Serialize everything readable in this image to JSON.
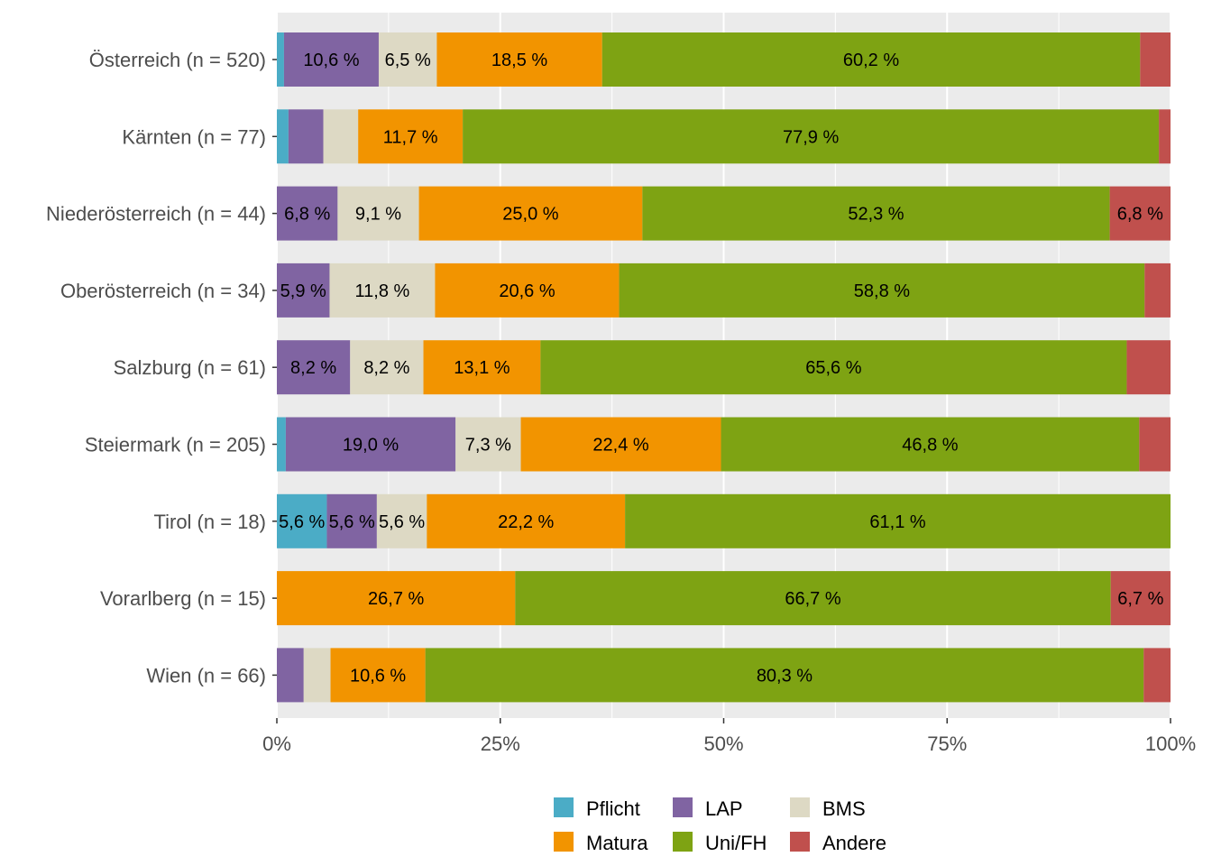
{
  "chart_data": {
    "type": "bar",
    "orientation": "horizontal",
    "stacked": true,
    "normalized": true,
    "title": "",
    "xlabel": "",
    "ylabel": "",
    "xlim": [
      0,
      100
    ],
    "x_ticks": [
      {
        "value": 0,
        "label": "0%"
      },
      {
        "value": 25,
        "label": "25%"
      },
      {
        "value": 50,
        "label": "50%"
      },
      {
        "value": 75,
        "label": "75%"
      },
      {
        "value": 100,
        "label": "100%"
      }
    ],
    "legend_position": "bottom",
    "categories": [
      "Österreich (n = 520)",
      "Kärnten (n = 77)",
      "Niederösterreich (n = 44)",
      "Oberösterreich (n = 34)",
      "Salzburg (n = 61)",
      "Steiermark (n = 205)",
      "Tirol (n = 18)",
      "Vorarlberg (n = 15)",
      "Wien (n = 66)"
    ],
    "series": [
      {
        "name": "Pflicht",
        "color": "#4bacc6",
        "values": [
          0.8,
          1.3,
          0.0,
          0.0,
          0.0,
          1.0,
          5.6,
          0.0,
          0.0
        ],
        "labels": [
          "",
          "",
          "",
          "",
          "",
          "",
          "5,6 %",
          "",
          ""
        ]
      },
      {
        "name": "LAP",
        "color": "#8064a2",
        "values": [
          10.6,
          3.9,
          6.8,
          5.9,
          8.2,
          19.0,
          5.6,
          0.0,
          3.0
        ],
        "labels": [
          "10,6 %",
          "",
          "6,8 %",
          "5,9 %",
          "8,2 %",
          "19,0 %",
          "5,6 %",
          "",
          ""
        ]
      },
      {
        "name": "BMS",
        "color": "#ddd9c4",
        "values": [
          6.5,
          3.9,
          9.1,
          11.8,
          8.2,
          7.3,
          5.6,
          0.0,
          3.0
        ],
        "labels": [
          "6,5 %",
          "",
          "9,1 %",
          "11,8 %",
          "8,2 %",
          "7,3 %",
          "5,6 %",
          "",
          ""
        ]
      },
      {
        "name": "Matura",
        "color": "#f29400",
        "values": [
          18.5,
          11.7,
          25.0,
          20.6,
          13.1,
          22.4,
          22.2,
          26.7,
          10.6
        ],
        "labels": [
          "18,5 %",
          "11,7 %",
          "25,0 %",
          "20,6 %",
          "13,1 %",
          "22,4 %",
          "22,2 %",
          "26,7 %",
          "10,6 %"
        ]
      },
      {
        "name": "Uni/FH",
        "color": "#7ea313",
        "values": [
          60.2,
          77.9,
          52.3,
          58.8,
          65.6,
          46.8,
          61.1,
          66.7,
          80.3
        ],
        "labels": [
          "60,2 %",
          "77,9 %",
          "52,3 %",
          "58,8 %",
          "65,6 %",
          "46,8 %",
          "61,1 %",
          "66,7 %",
          "80,3 %"
        ]
      },
      {
        "name": "Andere",
        "color": "#c0504d",
        "values": [
          3.4,
          1.3,
          6.8,
          2.9,
          4.9,
          3.5,
          0.0,
          6.7,
          3.0
        ],
        "labels": [
          "",
          "",
          "6,8 %",
          "",
          "",
          "",
          "",
          "6,7 %",
          ""
        ]
      }
    ],
    "legend_order": [
      "Pflicht",
      "LAP",
      "BMS",
      "Matura",
      "Uni/FH",
      "Andere"
    ],
    "colors": {
      "panel_background": "#ebebeb",
      "grid": "#ffffff",
      "axis_text": "#4d4d4d",
      "label_text": "#000000"
    }
  }
}
